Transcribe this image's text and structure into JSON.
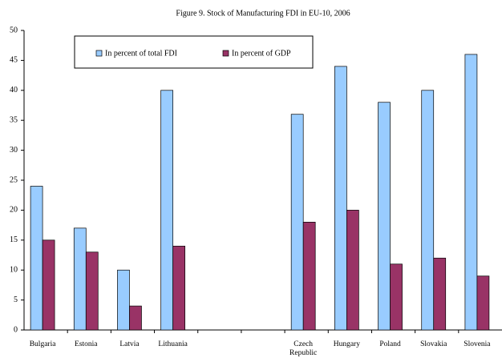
{
  "chart_data": {
    "type": "bar",
    "title": "Figure 9. Stock of Manufacturing FDI in EU-10, 2006",
    "categories": [
      "Bulgaria",
      "Estonia",
      "Latvia",
      "Lithuania",
      null,
      null,
      "Czech Republic",
      "Hungary",
      "Poland",
      "Slovakia",
      "Slovenia"
    ],
    "series": [
      {
        "name": "In percent of total FDI",
        "color": "#99ccff",
        "values": [
          24,
          17,
          10,
          40,
          null,
          null,
          36,
          44,
          38,
          40,
          46
        ]
      },
      {
        "name": "In percent of GDP",
        "color": "#993366",
        "values": [
          15,
          13,
          4,
          14,
          null,
          null,
          18,
          20,
          11,
          12,
          9
        ]
      }
    ],
    "ylim": [
      0,
      50
    ],
    "yticks": [
      0,
      5,
      10,
      15,
      20,
      25,
      30,
      35,
      40,
      45,
      50
    ],
    "grid": false,
    "legend": "top-left"
  }
}
